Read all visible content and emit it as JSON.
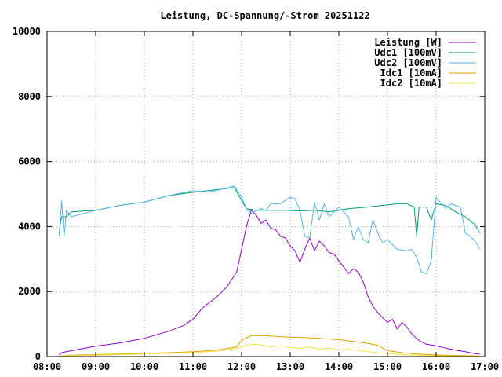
{
  "chart_data": {
    "type": "line",
    "title": "Leistung, DC-Spannung/-Strom 20251122",
    "xlabel": "",
    "ylabel": "",
    "x_unit": "time of day (hours)",
    "xlim": [
      8,
      17
    ],
    "ylim": [
      0,
      10000
    ],
    "x_ticks": [
      "08:00",
      "09:00",
      "10:00",
      "11:00",
      "12:00",
      "13:00",
      "14:00",
      "15:00",
      "16:00",
      "17:00"
    ],
    "y_ticks": [
      "0",
      "2000",
      "4000",
      "6000",
      "8000",
      "10000"
    ],
    "grid": true,
    "legend_position": "top-right",
    "series": [
      {
        "name": "Leistung [W]",
        "color": "#9400d3",
        "points": [
          [
            8.25,
            50
          ],
          [
            8.3,
            120
          ],
          [
            8.5,
            180
          ],
          [
            9.0,
            320
          ],
          [
            9.5,
            420
          ],
          [
            10.0,
            560
          ],
          [
            10.5,
            780
          ],
          [
            10.8,
            950
          ],
          [
            11.0,
            1150
          ],
          [
            11.2,
            1500
          ],
          [
            11.5,
            1850
          ],
          [
            11.7,
            2150
          ],
          [
            11.9,
            2600
          ],
          [
            12.0,
            3300
          ],
          [
            12.1,
            4000
          ],
          [
            12.2,
            4500
          ],
          [
            12.3,
            4350
          ],
          [
            12.4,
            4100
          ],
          [
            12.5,
            4200
          ],
          [
            12.6,
            3950
          ],
          [
            12.7,
            3900
          ],
          [
            12.8,
            3700
          ],
          [
            12.9,
            3650
          ],
          [
            13.0,
            3400
          ],
          [
            13.1,
            3250
          ],
          [
            13.2,
            2900
          ],
          [
            13.3,
            3300
          ],
          [
            13.4,
            3650
          ],
          [
            13.5,
            3250
          ],
          [
            13.6,
            3550
          ],
          [
            13.7,
            3400
          ],
          [
            13.8,
            3200
          ],
          [
            13.9,
            3150
          ],
          [
            14.0,
            2950
          ],
          [
            14.1,
            2750
          ],
          [
            14.2,
            2550
          ],
          [
            14.3,
            2700
          ],
          [
            14.4,
            2600
          ],
          [
            14.5,
            2300
          ],
          [
            14.6,
            1850
          ],
          [
            14.7,
            1550
          ],
          [
            14.8,
            1350
          ],
          [
            14.9,
            1200
          ],
          [
            15.0,
            1050
          ],
          [
            15.1,
            1150
          ],
          [
            15.2,
            850
          ],
          [
            15.3,
            1050
          ],
          [
            15.4,
            900
          ],
          [
            15.5,
            700
          ],
          [
            15.6,
            550
          ],
          [
            15.7,
            450
          ],
          [
            15.8,
            380
          ],
          [
            16.0,
            330
          ],
          [
            16.2,
            260
          ],
          [
            16.4,
            200
          ],
          [
            16.6,
            150
          ],
          [
            16.8,
            90
          ],
          [
            16.9,
            80
          ]
        ]
      },
      {
        "name": "Udc1 [100mV]",
        "color": "#009e73",
        "points": [
          [
            8.25,
            3900
          ],
          [
            8.3,
            4300
          ],
          [
            8.4,
            4300
          ],
          [
            8.5,
            4450
          ],
          [
            9.0,
            4500
          ],
          [
            9.5,
            4650
          ],
          [
            10.0,
            4750
          ],
          [
            10.5,
            4950
          ],
          [
            11.0,
            5050
          ],
          [
            11.3,
            5100
          ],
          [
            11.6,
            5150
          ],
          [
            11.85,
            5200
          ],
          [
            12.0,
            4800
          ],
          [
            12.1,
            4550
          ],
          [
            12.3,
            4500
          ],
          [
            12.6,
            4500
          ],
          [
            12.9,
            4500
          ],
          [
            13.2,
            4480
          ],
          [
            13.5,
            4500
          ],
          [
            13.8,
            4450
          ],
          [
            14.2,
            4550
          ],
          [
            14.6,
            4600
          ],
          [
            14.9,
            4650
          ],
          [
            15.2,
            4700
          ],
          [
            15.4,
            4700
          ],
          [
            15.55,
            4600
          ],
          [
            15.6,
            3700
          ],
          [
            15.65,
            4600
          ],
          [
            15.8,
            4600
          ],
          [
            15.9,
            4200
          ],
          [
            16.0,
            4700
          ],
          [
            16.2,
            4650
          ],
          [
            16.4,
            4450
          ],
          [
            16.6,
            4300
          ],
          [
            16.8,
            4050
          ],
          [
            16.9,
            3800
          ]
        ]
      },
      {
        "name": "Udc2 [100mV]",
        "color": "#56b4e9",
        "points": [
          [
            8.25,
            3700
          ],
          [
            8.3,
            4800
          ],
          [
            8.35,
            3700
          ],
          [
            8.4,
            4500
          ],
          [
            8.5,
            4300
          ],
          [
            9.0,
            4500
          ],
          [
            9.5,
            4650
          ],
          [
            10.0,
            4750
          ],
          [
            10.5,
            4950
          ],
          [
            11.0,
            5100
          ],
          [
            11.3,
            5050
          ],
          [
            11.6,
            5150
          ],
          [
            11.85,
            5250
          ],
          [
            12.0,
            4900
          ],
          [
            12.1,
            4550
          ],
          [
            12.2,
            4400
          ],
          [
            12.4,
            4550
          ],
          [
            12.5,
            4500
          ],
          [
            12.6,
            4700
          ],
          [
            12.8,
            4700
          ],
          [
            12.9,
            4800
          ],
          [
            13.0,
            4900
          ],
          [
            13.1,
            4850
          ],
          [
            13.2,
            4500
          ],
          [
            13.3,
            3700
          ],
          [
            13.4,
            3650
          ],
          [
            13.5,
            4750
          ],
          [
            13.6,
            4200
          ],
          [
            13.7,
            4700
          ],
          [
            13.8,
            4300
          ],
          [
            14.0,
            4600
          ],
          [
            14.2,
            4300
          ],
          [
            14.3,
            3600
          ],
          [
            14.4,
            4000
          ],
          [
            14.5,
            3600
          ],
          [
            14.6,
            3500
          ],
          [
            14.7,
            4200
          ],
          [
            14.8,
            3800
          ],
          [
            14.9,
            3500
          ],
          [
            15.0,
            3600
          ],
          [
            15.2,
            3300
          ],
          [
            15.4,
            3250
          ],
          [
            15.5,
            3300
          ],
          [
            15.6,
            3050
          ],
          [
            15.7,
            2600
          ],
          [
            15.8,
            2550
          ],
          [
            15.9,
            2950
          ],
          [
            16.0,
            4900
          ],
          [
            16.2,
            4550
          ],
          [
            16.3,
            4700
          ],
          [
            16.5,
            4600
          ],
          [
            16.6,
            3800
          ],
          [
            16.7,
            3700
          ],
          [
            16.8,
            3550
          ],
          [
            16.9,
            3300
          ]
        ]
      },
      {
        "name": "Idc1 [10mA]",
        "color": "#e69f00",
        "points": [
          [
            8.25,
            20
          ],
          [
            8.5,
            40
          ],
          [
            9.0,
            60
          ],
          [
            9.5,
            80
          ],
          [
            10.0,
            100
          ],
          [
            10.5,
            120
          ],
          [
            11.0,
            150
          ],
          [
            11.5,
            200
          ],
          [
            11.9,
            300
          ],
          [
            12.0,
            500
          ],
          [
            12.2,
            650
          ],
          [
            12.5,
            640
          ],
          [
            13.0,
            600
          ],
          [
            13.5,
            570
          ],
          [
            14.0,
            520
          ],
          [
            14.5,
            430
          ],
          [
            14.8,
            350
          ],
          [
            15.0,
            180
          ],
          [
            15.3,
            120
          ],
          [
            15.6,
            80
          ],
          [
            16.0,
            50
          ],
          [
            16.5,
            30
          ],
          [
            16.9,
            20
          ]
        ]
      },
      {
        "name": "Idc2 [10mA]",
        "color": "#f0e442",
        "points": [
          [
            8.25,
            15
          ],
          [
            8.5,
            30
          ],
          [
            9.0,
            40
          ],
          [
            9.5,
            60
          ],
          [
            10.0,
            80
          ],
          [
            10.5,
            100
          ],
          [
            11.0,
            120
          ],
          [
            11.5,
            170
          ],
          [
            11.9,
            250
          ],
          [
            12.0,
            300
          ],
          [
            12.2,
            380
          ],
          [
            12.4,
            360
          ],
          [
            12.6,
            300
          ],
          [
            12.8,
            340
          ],
          [
            13.0,
            280
          ],
          [
            13.2,
            250
          ],
          [
            13.4,
            300
          ],
          [
            13.6,
            230
          ],
          [
            13.8,
            260
          ],
          [
            14.0,
            200
          ],
          [
            14.2,
            230
          ],
          [
            14.4,
            190
          ],
          [
            14.6,
            150
          ],
          [
            14.8,
            120
          ],
          [
            15.0,
            90
          ],
          [
            15.3,
            60
          ],
          [
            15.6,
            40
          ],
          [
            16.0,
            25
          ],
          [
            16.5,
            15
          ],
          [
            16.9,
            10
          ]
        ]
      }
    ]
  }
}
